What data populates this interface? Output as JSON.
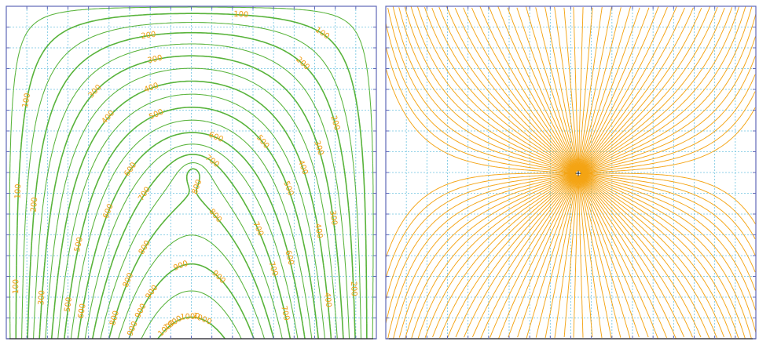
{
  "panels": [
    {
      "kind": "isolines",
      "line_color": "#58b33a",
      "label_color": "#ef9d12",
      "isoline_values": [
        100,
        200,
        300,
        400,
        500,
        600,
        700,
        800,
        900,
        1000,
        1100,
        1200,
        1300,
        1400,
        1500,
        1600,
        1700
      ]
    },
    {
      "kind": "streamlines",
      "line_color": "#f4a414",
      "source_marker": "+"
    }
  ],
  "grid": {
    "color": "#6ec3df",
    "style": "dotted"
  },
  "frame_color": "#5f68b8"
}
